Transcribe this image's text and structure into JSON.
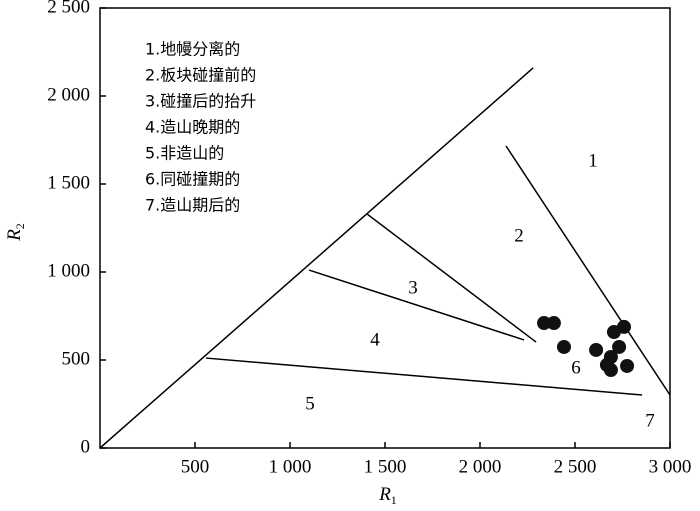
{
  "chart_data": {
    "type": "scatter",
    "xlabel": "R",
    "xlabel_sub": "1",
    "ylabel": "R",
    "ylabel_sub": "2",
    "xlim": [
      0,
      3000
    ],
    "ylim": [
      0,
      2500
    ],
    "xticks": [
      500,
      {
        "value": 1000,
        "label": "1 000"
      },
      {
        "value": 1500,
        "label": "1 500"
      },
      {
        "value": 2000,
        "label": "2 000"
      },
      {
        "value": 2500,
        "label": "2 500"
      },
      {
        "value": 3000,
        "label": "3 000"
      }
    ],
    "yticks": [
      0,
      500,
      {
        "value": 1000,
        "label": "1 000"
      },
      {
        "value": 1500,
        "label": "1 500"
      },
      {
        "value": 2000,
        "label": "2 000"
      },
      {
        "value": 2500,
        "label": "2 500"
      }
    ],
    "x": [
      2337,
      2389,
      2442,
      2611,
      2689,
      2705,
      2758,
      2732,
      2668,
      2689,
      2774
    ],
    "values": [
      710,
      710,
      574,
      557,
      517,
      659,
      688,
      574,
      472,
      443,
      466
    ],
    "color": "#111111",
    "boundary_lines": [
      {
        "x": [
          0,
          2280
        ],
        "values": [
          0,
          2160
        ]
      },
      {
        "x": [
          2137,
          3000
        ],
        "values": [
          1716,
          301
        ]
      },
      {
        "x": [
          1405,
          2295
        ],
        "values": [
          1330,
          602
        ]
      },
      {
        "x": [
          1100,
          2232
        ],
        "values": [
          1011,
          614
        ]
      },
      {
        "x": [
          558,
          2853
        ],
        "values": [
          511,
          301
        ]
      }
    ],
    "regions": [
      "1",
      "2",
      "3",
      "4",
      "5",
      "6",
      "7"
    ],
    "legend": [
      "1.地幔分离的",
      "2.板块碰撞前的",
      "3.碰撞后的抬升",
      "4.造山晚期的",
      "5.非造山的",
      "6.同碰撞期的",
      "7.造山期后的"
    ]
  }
}
